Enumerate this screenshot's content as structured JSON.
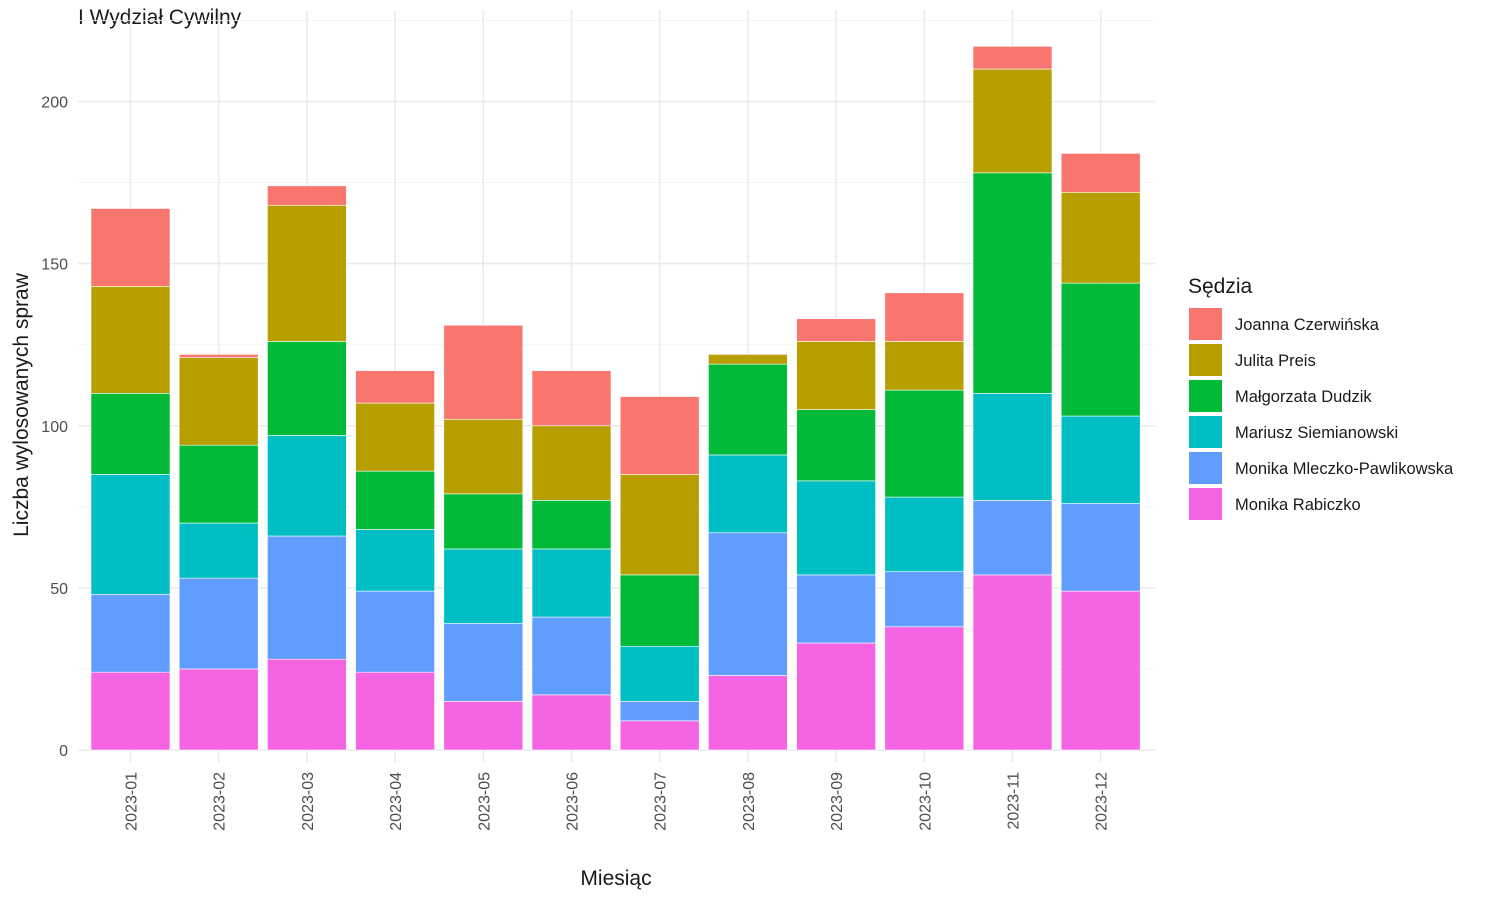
{
  "chart_data": {
    "type": "bar",
    "stacked": true,
    "title": "I Wydział Cywilny",
    "xlabel": "Miesiąc",
    "ylabel": "Liczba wylosowanych spraw",
    "ylim": [
      0,
      225
    ],
    "yticks": [
      0,
      50,
      100,
      150,
      200
    ],
    "grid": true,
    "legend_title": "Sędzia",
    "legend_position": "right",
    "categories": [
      "2023-01",
      "2023-02",
      "2023-03",
      "2023-04",
      "2023-05",
      "2023-06",
      "2023-07",
      "2023-08",
      "2023-09",
      "2023-10",
      "2023-11",
      "2023-12"
    ],
    "series": [
      {
        "name": "Monika Rabiczko",
        "color": "#F564E3",
        "values": [
          24,
          25,
          28,
          24,
          15,
          17,
          9,
          23,
          33,
          38,
          54,
          49
        ]
      },
      {
        "name": "Monika Mleczko-Pawlikowska",
        "color": "#619CFF",
        "values": [
          24,
          28,
          38,
          25,
          24,
          24,
          6,
          44,
          21,
          17,
          23,
          27
        ]
      },
      {
        "name": "Mariusz Siemianowski",
        "color": "#00BFC4",
        "values": [
          37,
          17,
          31,
          19,
          23,
          21,
          17,
          24,
          29,
          23,
          33,
          27
        ]
      },
      {
        "name": "Małgorzata Dudzik",
        "color": "#00BA38",
        "values": [
          25,
          24,
          29,
          18,
          17,
          15,
          22,
          28,
          22,
          33,
          68,
          41
        ]
      },
      {
        "name": "Julita Preis",
        "color": "#B79F00",
        "values": [
          33,
          27,
          42,
          21,
          23,
          23,
          31,
          3,
          21,
          15,
          32,
          28
        ]
      },
      {
        "name": "Joanna Czerwińska",
        "color": "#F8766D",
        "values": [
          24,
          1,
          6,
          10,
          29,
          17,
          24,
          0,
          7,
          15,
          7,
          12
        ]
      }
    ],
    "legend_order": [
      "Joanna Czerwińska",
      "Julita Preis",
      "Małgorzata Dudzik",
      "Mariusz Siemianowski",
      "Monika Mleczko-Pawlikowska",
      "Monika Rabiczko"
    ]
  }
}
